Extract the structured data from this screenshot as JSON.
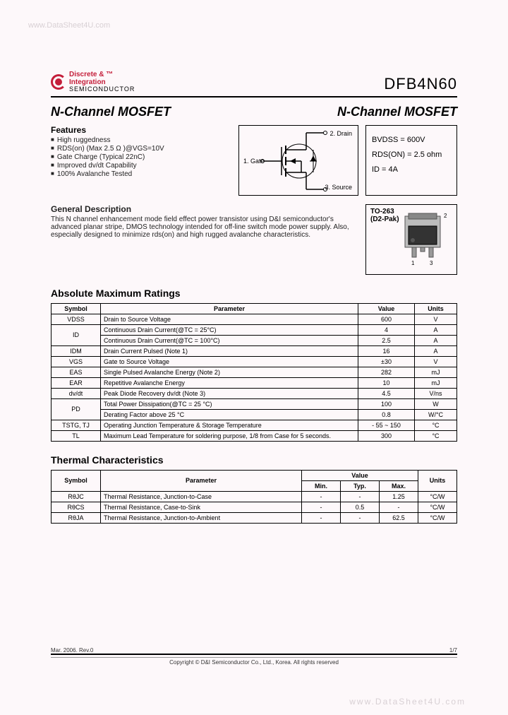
{
  "watermark_top": "www.DataSheet4U.com",
  "watermark_bottom": "www.DataSheet4U.com",
  "logo": {
    "line1": "Discrete & ™",
    "line2": "Integration",
    "line3": "SEMICONDUCTOR"
  },
  "part_number": "DFB4N60",
  "title_left": "N-Channel MOSFET",
  "title_right": "N-Channel MOSFET",
  "features": {
    "heading": "Features",
    "items": [
      "High ruggedness",
      "RDS(on) (Max 2.5 Ω )@VGS=10V",
      "Gate Charge (Typical 22nC)",
      "Improved dv/dt Capability",
      "100% Avalanche Tested"
    ]
  },
  "symbol_labels": {
    "drain": "2. Drain",
    "gate": "1. Gate",
    "source": "3. Source"
  },
  "spec_box": {
    "bvdss": "BVDSS = 600V",
    "rdson": "RDS(ON) = 2.5 ohm",
    "id": "ID = 4A"
  },
  "general": {
    "heading": "General Description",
    "body": "This N channel enhancement mode field effect power transistor using D&I semiconductor's advanced planar stripe, DMOS technology intended for off-line switch mode power supply. Also, especially designed to minimize rds(on) and high rugged avalanche characteristics."
  },
  "package": {
    "name": "TO-263",
    "alt": "(D2-Pak)",
    "pins": {
      "p1": "1",
      "p2": "2",
      "p3": "3"
    }
  },
  "abs_max": {
    "heading": "Absolute Maximum Ratings",
    "columns": [
      "Symbol",
      "Parameter",
      "Value",
      "Units"
    ],
    "rows": [
      {
        "sym": "VDSS",
        "param": "Drain to Source Voltage",
        "val": "600",
        "unit": "V"
      },
      {
        "sym": "ID",
        "param": "Continuous Drain Current(@TC = 25°C)",
        "val": "4",
        "unit": "A",
        "rowspan_sym": 2
      },
      {
        "sym": "",
        "param": "Continuous Drain Current(@TC = 100°C)",
        "val": "2.5",
        "unit": "A"
      },
      {
        "sym": "IDM",
        "param": "Drain Current Pulsed                                (Note 1)",
        "val": "16",
        "unit": "A"
      },
      {
        "sym": "VGS",
        "param": "Gate to Source Voltage",
        "val": "±30",
        "unit": "V"
      },
      {
        "sym": "EAS",
        "param": "Single Pulsed Avalanche Energy                (Note 2)",
        "val": "282",
        "unit": "mJ"
      },
      {
        "sym": "EAR",
        "param": "Repetitive Avalanche Energy",
        "val": "10",
        "unit": "mJ"
      },
      {
        "sym": "dv/dt",
        "param": "Peak Diode Recovery dv/dt                        (Note 3)",
        "val": "4.5",
        "unit": "V/ns"
      },
      {
        "sym": "PD",
        "param": "Total Power Dissipation(@TC = 25 °C)",
        "val": "100",
        "unit": "W",
        "rowspan_sym": 2
      },
      {
        "sym": "",
        "param": "Derating Factor above 25 °C",
        "val": "0.8",
        "unit": "W/°C"
      },
      {
        "sym": "TSTG, TJ",
        "param": "Operating Junction Temperature & Storage Temperature",
        "val": "- 55 ~ 150",
        "unit": "°C"
      },
      {
        "sym": "TL",
        "param": "Maximum Lead Temperature for soldering purpose, 1/8 from Case for 5 seconds.",
        "val": "300",
        "unit": "°C"
      }
    ]
  },
  "thermal": {
    "heading": "Thermal Characteristics",
    "columns": [
      "Symbol",
      "Parameter",
      "Min.",
      "Typ.",
      "Max.",
      "Units"
    ],
    "value_header": "Value",
    "rows": [
      {
        "sym": "RθJC",
        "param": "Thermal Resistance, Junction-to-Case",
        "min": "-",
        "typ": "-",
        "max": "1.25",
        "unit": "°C/W"
      },
      {
        "sym": "RθCS",
        "param": "Thermal Resistance, Case-to-Sink",
        "min": "-",
        "typ": "0.5",
        "max": "-",
        "unit": "°C/W"
      },
      {
        "sym": "RθJA",
        "param": "Thermal Resistance, Junction-to-Ambient",
        "min": "-",
        "typ": "-",
        "max": "62.5",
        "unit": "°C/W"
      }
    ]
  },
  "footer": {
    "rev": "Mar. 2006. Rev.0",
    "page": "1/7",
    "copyright": "Copyright © D&I Semiconductor Co., Ltd., Korea. All rights reserved"
  },
  "colors": {
    "background": "#fdf8fa",
    "accent": "#c41e3a",
    "text": "#000000",
    "watermark": "#d8d0d4",
    "border": "#000000"
  }
}
